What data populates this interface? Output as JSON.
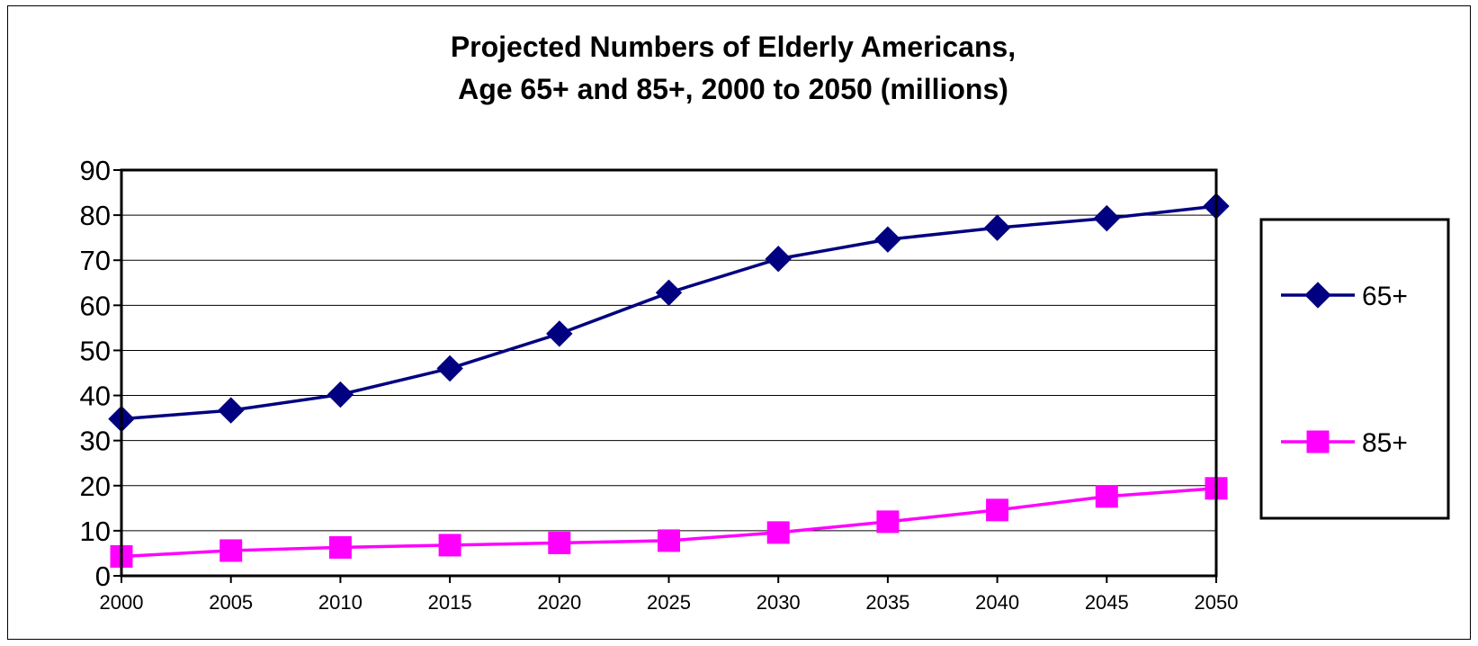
{
  "chart_data": {
    "type": "line",
    "title": [
      "Projected Numbers of Elderly Americans,",
      "Age 65+ and 85+, 2000 to 2050 (millions)"
    ],
    "categories": [
      "2000",
      "2005",
      "2010",
      "2015",
      "2020",
      "2025",
      "2030",
      "2035",
      "2040",
      "2045",
      "2050"
    ],
    "series": [
      {
        "name": "65+",
        "marker": "diamond",
        "color": "#000080",
        "values": [
          34.8,
          36.7,
          40.2,
          46.0,
          53.7,
          62.8,
          70.3,
          74.6,
          77.2,
          79.3,
          82.0
        ]
      },
      {
        "name": "85+",
        "marker": "square",
        "color": "#FF00FF",
        "values": [
          4.3,
          5.6,
          6.3,
          6.8,
          7.3,
          7.8,
          9.6,
          12.0,
          14.6,
          17.6,
          19.4
        ]
      }
    ],
    "ylim": [
      0,
      90
    ],
    "yticks": [
      0,
      10,
      20,
      30,
      40,
      50,
      60,
      70,
      80,
      90
    ],
    "grid": "horizontal",
    "legend": "right"
  }
}
